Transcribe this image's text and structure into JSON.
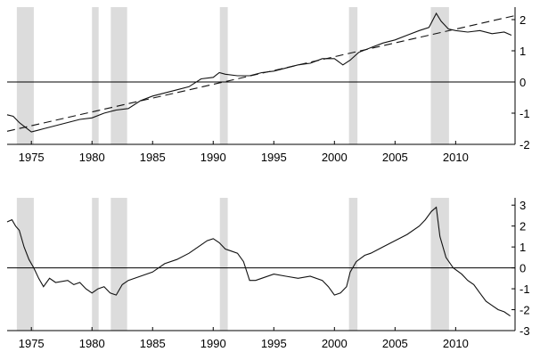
{
  "chart_data": [
    {
      "type": "line",
      "panel": "top",
      "x_range": [
        1973.0,
        2014.9
      ],
      "ylim": [
        -2,
        2.4
      ],
      "y_ticks": [
        -2,
        -1,
        0,
        1,
        2
      ],
      "y_tick_labels": [
        "-2",
        "-1",
        "0",
        "1",
        "2"
      ],
      "x_ticks": [
        1975,
        1980,
        1985,
        1990,
        1995,
        2000,
        2005,
        2010
      ],
      "x_tick_labels": [
        "1975",
        "1980",
        "1985",
        "1990",
        "1995",
        "2000",
        "2005",
        "2010"
      ],
      "shaded_periods": [
        [
          1973.8,
          1975.2
        ],
        [
          1980.0,
          1980.55
        ],
        [
          1981.55,
          1982.9
        ],
        [
          1990.55,
          1991.2
        ],
        [
          2001.2,
          2001.9
        ],
        [
          2007.95,
          2009.45
        ]
      ],
      "zero_line": true,
      "series": [
        {
          "style": "solid",
          "x": [
            1973.0,
            1973.5,
            1974.0,
            1974.5,
            1975.0,
            1975.5,
            1976.0,
            1977.0,
            1978.0,
            1979.0,
            1980.0,
            1981.0,
            1982.0,
            1983.0,
            1984.0,
            1985.0,
            1986.0,
            1987.0,
            1988.0,
            1989.0,
            1990.0,
            1990.5,
            1991.0,
            1992.0,
            1993.0,
            1994.0,
            1995.0,
            1996.0,
            1997.0,
            1998.0,
            1999.0,
            2000.0,
            2000.7,
            2001.3,
            2002.0,
            2003.0,
            2004.0,
            2005.0,
            2006.0,
            2007.0,
            2007.8,
            2008.4,
            2008.8,
            2009.4,
            2010.0,
            2011.0,
            2012.0,
            2013.0,
            2014.0,
            2014.6
          ],
          "values": [
            -1.05,
            -1.1,
            -1.3,
            -1.45,
            -1.6,
            -1.55,
            -1.5,
            -1.4,
            -1.3,
            -1.2,
            -1.15,
            -1.0,
            -0.9,
            -0.85,
            -0.6,
            -0.45,
            -0.35,
            -0.25,
            -0.15,
            0.1,
            0.15,
            0.3,
            0.25,
            0.2,
            0.2,
            0.3,
            0.35,
            0.45,
            0.55,
            0.6,
            0.75,
            0.75,
            0.55,
            0.7,
            0.95,
            1.1,
            1.25,
            1.35,
            1.5,
            1.65,
            1.75,
            2.2,
            1.95,
            1.7,
            1.65,
            1.6,
            1.65,
            1.55,
            1.6,
            1.5
          ]
        },
        {
          "style": "dashed",
          "x": [
            1973.0,
            2014.9
          ],
          "values": [
            -1.58,
            2.13
          ]
        }
      ]
    },
    {
      "type": "line",
      "panel": "bottom",
      "x_range": [
        1973.0,
        2014.9
      ],
      "ylim": [
        -3,
        3.35
      ],
      "y_ticks": [
        -3,
        -2,
        -1,
        0,
        1,
        2,
        3
      ],
      "y_tick_labels": [
        "-3",
        "-2",
        "-1",
        "0",
        "1",
        "2",
        "3"
      ],
      "x_ticks": [
        1975,
        1980,
        1985,
        1990,
        1995,
        2000,
        2005,
        2010
      ],
      "x_tick_labels": [
        "1975",
        "1980",
        "1985",
        "1990",
        "1995",
        "2000",
        "2005",
        "2010"
      ],
      "shaded_periods": [
        [
          1973.8,
          1975.2
        ],
        [
          1980.0,
          1980.55
        ],
        [
          1981.55,
          1982.9
        ],
        [
          1990.55,
          1991.2
        ],
        [
          2001.2,
          2001.9
        ],
        [
          2007.95,
          2009.45
        ]
      ],
      "zero_line": true,
      "series": [
        {
          "style": "solid",
          "x": [
            1973.0,
            1973.4,
            1973.7,
            1974.0,
            1974.4,
            1974.8,
            1975.2,
            1975.6,
            1976.0,
            1976.5,
            1977.0,
            1978.0,
            1978.5,
            1979.0,
            1979.5,
            1980.0,
            1980.5,
            1981.0,
            1981.5,
            1982.0,
            1982.5,
            1983.0,
            1984.0,
            1985.0,
            1986.0,
            1987.0,
            1988.0,
            1989.0,
            1989.5,
            1990.0,
            1990.5,
            1991.0,
            1991.5,
            1992.0,
            1992.5,
            1993.0,
            1993.5,
            1994.0,
            1995.0,
            1996.0,
            1997.0,
            1998.0,
            1999.0,
            1999.5,
            2000.0,
            2000.5,
            2001.0,
            2001.3,
            2001.8,
            2002.5,
            2003.0,
            2004.0,
            2005.0,
            2006.0,
            2007.0,
            2007.5,
            2008.0,
            2008.4,
            2008.7,
            2009.2,
            2009.8,
            2010.5,
            2011.0,
            2011.5,
            2012.0,
            2012.5,
            2013.0,
            2013.5,
            2014.0,
            2014.5
          ],
          "values": [
            2.2,
            2.3,
            2.0,
            1.8,
            1.0,
            0.4,
            0.0,
            -0.5,
            -0.9,
            -0.5,
            -0.7,
            -0.6,
            -0.8,
            -0.7,
            -1.0,
            -1.2,
            -1.0,
            -0.9,
            -1.2,
            -1.3,
            -0.8,
            -0.6,
            -0.4,
            -0.2,
            0.2,
            0.4,
            0.7,
            1.1,
            1.3,
            1.4,
            1.2,
            0.9,
            0.8,
            0.7,
            0.3,
            -0.6,
            -0.6,
            -0.5,
            -0.3,
            -0.4,
            -0.5,
            -0.4,
            -0.6,
            -0.9,
            -1.3,
            -1.2,
            -0.9,
            -0.2,
            0.3,
            0.6,
            0.7,
            1.0,
            1.3,
            1.6,
            2.0,
            2.3,
            2.7,
            2.9,
            1.5,
            0.5,
            0.0,
            -0.3,
            -0.6,
            -0.8,
            -1.2,
            -1.6,
            -1.8,
            -2.0,
            -2.1,
            -2.3
          ]
        }
      ]
    }
  ]
}
